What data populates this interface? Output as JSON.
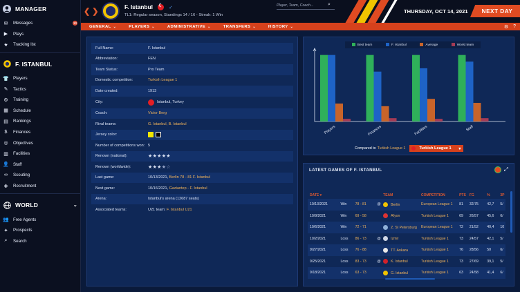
{
  "sidebar": {
    "manager_title": "MANAGER",
    "manager_items": [
      {
        "label": "Messages",
        "icon": "envelope-icon",
        "badge": "10"
      },
      {
        "label": "Plays",
        "icon": "play-icon"
      },
      {
        "label": "Tracking list",
        "icon": "star-icon"
      }
    ],
    "club_title": "F. ISTANBUL",
    "club_items": [
      {
        "label": "Players",
        "icon": "shirt-icon"
      },
      {
        "label": "Tactics",
        "icon": "tactics-icon"
      },
      {
        "label": "Training",
        "icon": "training-icon"
      },
      {
        "label": "Schedule",
        "icon": "calendar-icon"
      },
      {
        "label": "Rankings",
        "icon": "rankings-icon"
      },
      {
        "label": "Finances",
        "icon": "finances-icon"
      },
      {
        "label": "Objectives",
        "icon": "target-icon"
      },
      {
        "label": "Facilities",
        "icon": "facilities-icon"
      },
      {
        "label": "Staff",
        "icon": "staff-icon"
      },
      {
        "label": "Scouting",
        "icon": "binoculars-icon"
      },
      {
        "label": "Recruitment",
        "icon": "recruitment-icon"
      }
    ],
    "world_title": "WORLD",
    "world_items": [
      {
        "label": "Free Agents",
        "icon": "free-agents-icon"
      },
      {
        "label": "Prospects",
        "icon": "prospects-icon"
      },
      {
        "label": "Search",
        "icon": "search-icon"
      }
    ]
  },
  "header": {
    "club_name": "F. Istanbul",
    "league_prefix": "TL1:",
    "standing_text": "Regular season, Standings 14 / 16 - Streak: 1 Win",
    "search_placeholder": "Player, Team, Coach...",
    "date": "THURSDAY, OCT 14, 2021",
    "next_day": "NEXT DAY",
    "colors": {
      "accent": "#e04b22",
      "panel": "#0f2857"
    }
  },
  "menu": [
    "GENERAL",
    "PLAYERS",
    "ADMINISTRATIVE",
    "TRANSFERS",
    "HISTORY"
  ],
  "info": {
    "full_name_label": "Full Name:",
    "full_name": "F. Istanbul",
    "abbr_label": "Abbreviation:",
    "abbr": "FEN",
    "status_label": "Team Status:",
    "status": "Pro Team",
    "domestic_label": "Domestic competition:",
    "domestic": "Turkish League 1",
    "created_label": "Date created:",
    "created": "1913",
    "city_label": "City:",
    "city": "Istanbul, Turkey",
    "coach_label": "Coach:",
    "coach": "Victor Berg",
    "rivals_label": "Rival teams:",
    "rivals": "G. Istanbul, B. Istanbul",
    "jersey_label": "Jersey color:",
    "jersey_colors": [
      "#f2e600",
      "#000000"
    ],
    "competitions_label": "Number of competitions won:",
    "competitions": "5",
    "renown_nat_label": "Renown (national):",
    "renown_nat": 5,
    "renown_world_label": "Renown (worldwide):",
    "renown_world": 3.5,
    "last_game_label": "Last game:",
    "last_game_date": "10/13/2021,",
    "last_game": "Berlin 78 - 81 F. Istanbul",
    "next_game_label": "Next game:",
    "next_game_date": "10/16/2021,",
    "next_game": "Gaziantep - F. Istanbul",
    "arena_label": "Arena:",
    "arena": "Istanbul's arena (12687 seats)",
    "assoc_label": "Associated teams:",
    "assoc_prefix": "U21 team:",
    "assoc": "F. Istanbul U21"
  },
  "chart_data": {
    "type": "bar",
    "categories": [
      "Players",
      "Finances",
      "Facilities",
      "Staff"
    ],
    "series": [
      {
        "name": "Best team",
        "color": "#2fb05a",
        "values": [
          100,
          100,
          100,
          100
        ]
      },
      {
        "name": "F. Istanbul",
        "color": "#1e63c6",
        "values": [
          100,
          75,
          80,
          90
        ]
      },
      {
        "name": "Average",
        "color": "#c8642a",
        "values": [
          27,
          23,
          34,
          28
        ]
      },
      {
        "name": "Worst team",
        "color": "#a53b55",
        "values": [
          4,
          5,
          4,
          5
        ]
      }
    ],
    "ylim": [
      0,
      110
    ],
    "legend": "top"
  },
  "compare": {
    "prefix": "Compared to",
    "link": "Turkish League 1",
    "selected": "Turkish League 1"
  },
  "games": {
    "title": "LATEST GAMES OF F. ISTANBUL",
    "headers": [
      "DATE",
      "TEAM",
      "COMPETITION",
      "PTS",
      "FG",
      "%",
      "3P"
    ],
    "rows": [
      {
        "date": "10/13/2021",
        "result": "Win",
        "score": "78 - 81",
        "at": "@",
        "team": "Berlin",
        "crest": "#f2c400",
        "comp": "European League 1",
        "pts": "81",
        "fg": "32/75",
        "pct": "42,7",
        "tp": "5/"
      },
      {
        "date": "10/9/2021",
        "result": "Win",
        "score": "69 - 58",
        "at": "",
        "team": "Afyon",
        "crest": "#d33",
        "comp": "Turkish League 1",
        "pts": "69",
        "fg": "26/57",
        "pct": "45,6",
        "tp": "6/"
      },
      {
        "date": "10/6/2021",
        "result": "Win",
        "score": "72 - 71",
        "at": "",
        "team": "Z. St Petersburg",
        "crest": "#8fb0d8",
        "comp": "European League 1",
        "pts": "72",
        "fg": "21/52",
        "pct": "40,4",
        "tp": "10"
      },
      {
        "date": "10/2/2021",
        "result": "Loss",
        "score": "86 - 73",
        "at": "@",
        "team": "Izmir",
        "crest": "#cfd6e6",
        "comp": "Turkish League 1",
        "pts": "73",
        "fg": "24/57",
        "pct": "42,1",
        "tp": "5/"
      },
      {
        "date": "9/27/2021",
        "result": "Loss",
        "score": "76 - 88",
        "at": "",
        "team": "TT. Ankara",
        "crest": "#e8e8e8",
        "comp": "Turkish League 1",
        "pts": "76",
        "fg": "28/56",
        "pct": "50",
        "tp": "6/"
      },
      {
        "date": "9/25/2021",
        "result": "Loss",
        "score": "83 - 73",
        "at": "@",
        "team": "K. Istanbul",
        "crest": "#d0202a",
        "comp": "Turkish League 1",
        "pts": "73",
        "fg": "27/69",
        "pct": "39,1",
        "tp": "5/"
      },
      {
        "date": "9/18/2021",
        "result": "Loss",
        "score": "63 - 73",
        "at": "",
        "team": "G. Istanbul",
        "crest": "#f2c400",
        "comp": "Turkish League 1",
        "pts": "63",
        "fg": "24/58",
        "pct": "41,4",
        "tp": "6/"
      }
    ]
  }
}
